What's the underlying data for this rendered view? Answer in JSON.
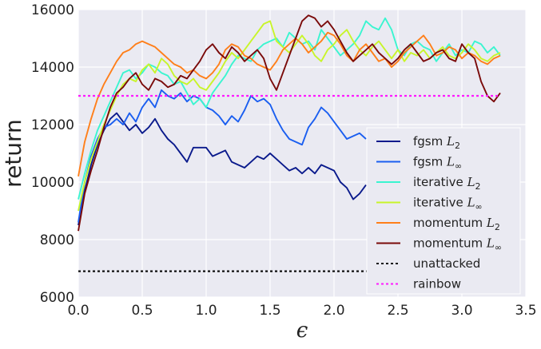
{
  "chart_data": {
    "type": "line",
    "title": "",
    "xlabel": "ϵ",
    "ylabel": "return",
    "xlim": [
      0.0,
      3.5
    ],
    "ylim": [
      6000,
      16000
    ],
    "xticks": [
      "0.0",
      "0.5",
      "1.0",
      "1.5",
      "2.0",
      "2.5",
      "3.0",
      "3.5"
    ],
    "yticks": [
      "6000",
      "8000",
      "10000",
      "12000",
      "14000",
      "16000"
    ],
    "grid": true,
    "legend_position": "lower-right",
    "series": [
      {
        "name": "fgsm L2",
        "legend_base": "fgsm ",
        "legend_sub": "2",
        "color": "#0a1a8c",
        "dash": "",
        "x": [
          0.0,
          0.05,
          0.1,
          0.15,
          0.2,
          0.25,
          0.3,
          0.35,
          0.4,
          0.45,
          0.5,
          0.55,
          0.6,
          0.65,
          0.7,
          0.75,
          0.8,
          0.85,
          0.9,
          0.95,
          1.0,
          1.05,
          1.1,
          1.15,
          1.2,
          1.25,
          1.3,
          1.35,
          1.4,
          1.45,
          1.5,
          1.55,
          1.6,
          1.65,
          1.7,
          1.75,
          1.8,
          1.85,
          1.9,
          1.95,
          2.0,
          2.05,
          2.1,
          2.15,
          2.2,
          2.25
        ],
        "y": [
          8500,
          9700,
          10600,
          11300,
          11800,
          12200,
          12400,
          12100,
          11800,
          12000,
          11700,
          11900,
          12200,
          11800,
          11500,
          11300,
          11000,
          10700,
          11200,
          11200,
          11200,
          10900,
          11000,
          11100,
          10700,
          10600,
          10500,
          10700,
          10900,
          10800,
          11000,
          10800,
          10600,
          10400,
          10500,
          10300,
          10500,
          10300,
          10600,
          10500,
          10400,
          10000,
          9800,
          9400,
          9600,
          9900
        ]
      },
      {
        "name": "fgsm L∞",
        "legend_base": "fgsm ",
        "legend_sub": "∞",
        "color": "#1a5ef0",
        "dash": "",
        "x": [
          0.0,
          0.05,
          0.1,
          0.15,
          0.2,
          0.25,
          0.3,
          0.35,
          0.4,
          0.45,
          0.5,
          0.55,
          0.6,
          0.65,
          0.7,
          0.75,
          0.8,
          0.85,
          0.9,
          0.95,
          1.0,
          1.05,
          1.1,
          1.15,
          1.2,
          1.25,
          1.3,
          1.35,
          1.4,
          1.45,
          1.5,
          1.55,
          1.6,
          1.65,
          1.7,
          1.75,
          1.8,
          1.85,
          1.9,
          1.95,
          2.0,
          2.05,
          2.1,
          2.15,
          2.2,
          2.25
        ],
        "y": [
          8600,
          10000,
          10900,
          11500,
          11900,
          12000,
          12200,
          12000,
          12400,
          12100,
          12600,
          12900,
          12600,
          13200,
          13000,
          12900,
          13100,
          12800,
          13000,
          12900,
          12600,
          12500,
          12300,
          12000,
          12300,
          12100,
          12500,
          13000,
          12800,
          12900,
          12700,
          12200,
          11800,
          11500,
          11400,
          11300,
          11900,
          12200,
          12600,
          12400,
          12100,
          11800,
          11500,
          11600,
          11700,
          11500
        ]
      },
      {
        "name": "iterative L2",
        "legend_base": "iterative ",
        "legend_sub": "2",
        "color": "#3af5d0",
        "dash": "",
        "x": [
          0.0,
          0.05,
          0.1,
          0.15,
          0.2,
          0.25,
          0.3,
          0.35,
          0.4,
          0.45,
          0.5,
          0.55,
          0.6,
          0.65,
          0.7,
          0.75,
          0.8,
          0.85,
          0.9,
          0.95,
          1.0,
          1.05,
          1.1,
          1.15,
          1.2,
          1.25,
          1.3,
          1.35,
          1.4,
          1.45,
          1.5,
          1.55,
          1.6,
          1.65,
          1.7,
          1.75,
          1.8,
          1.85,
          1.9,
          1.95,
          2.0,
          2.05,
          2.1,
          2.15,
          2.2,
          2.25,
          2.3,
          2.35,
          2.4,
          2.45,
          2.5,
          2.55,
          2.6,
          2.65,
          2.7,
          2.75,
          2.8,
          2.85,
          2.9,
          2.95,
          3.0,
          3.05,
          3.1,
          3.15,
          3.2,
          3.25,
          3.3
        ],
        "y": [
          9400,
          10300,
          11100,
          11800,
          12300,
          12800,
          13300,
          13800,
          13900,
          13600,
          13800,
          14100,
          14000,
          13800,
          13700,
          13400,
          13500,
          13100,
          12700,
          12900,
          12600,
          13100,
          13400,
          13700,
          14100,
          14400,
          14300,
          14200,
          14600,
          14800,
          14900,
          15000,
          14700,
          15200,
          15000,
          14800,
          14900,
          14600,
          15300,
          15000,
          14700,
          14400,
          14600,
          14800,
          15100,
          15600,
          15400,
          15300,
          15700,
          15300,
          14600,
          14400,
          14800,
          14900,
          14700,
          14600,
          14200,
          14500,
          14800,
          14400,
          14600,
          14500,
          14900,
          14800,
          14500,
          14700,
          14400
        ]
      },
      {
        "name": "iterative L∞",
        "legend_base": "iterative ",
        "legend_sub": "∞",
        "color": "#c8f52a",
        "dash": "",
        "x": [
          0.0,
          0.05,
          0.1,
          0.15,
          0.2,
          0.25,
          0.3,
          0.35,
          0.4,
          0.45,
          0.5,
          0.55,
          0.6,
          0.65,
          0.7,
          0.75,
          0.8,
          0.85,
          0.9,
          0.95,
          1.0,
          1.05,
          1.1,
          1.15,
          1.2,
          1.25,
          1.3,
          1.35,
          1.4,
          1.45,
          1.5,
          1.55,
          1.6,
          1.65,
          1.7,
          1.75,
          1.8,
          1.85,
          1.9,
          1.95,
          2.0,
          2.05,
          2.1,
          2.15,
          2.2,
          2.25,
          2.3,
          2.35,
          2.4,
          2.45,
          2.5,
          2.55,
          2.6,
          2.65,
          2.7,
          2.75,
          2.8,
          2.85,
          2.9,
          2.95,
          3.0,
          3.05,
          3.1,
          3.15,
          3.2,
          3.25,
          3.3
        ],
        "y": [
          9000,
          10000,
          10800,
          11400,
          12000,
          12500,
          13000,
          13400,
          13600,
          13500,
          13900,
          14100,
          13800,
          14300,
          14100,
          13700,
          13500,
          13400,
          13600,
          13300,
          13200,
          13500,
          13800,
          14200,
          14500,
          14300,
          14600,
          14900,
          15200,
          15500,
          15600,
          14900,
          14700,
          14500,
          14800,
          15100,
          14800,
          14400,
          14200,
          14600,
          14800,
          15100,
          15300,
          14900,
          14600,
          14400,
          14700,
          14900,
          14600,
          14300,
          14600,
          14200,
          14500,
          14400,
          14600,
          14300,
          14500,
          14700,
          14400,
          14300,
          14500,
          14800,
          14600,
          14300,
          14200,
          14400,
          14500
        ]
      },
      {
        "name": "momentum L2",
        "legend_base": "momentum ",
        "legend_sub": "2",
        "color": "#ff7f1a",
        "dash": "",
        "x": [
          0.0,
          0.05,
          0.1,
          0.15,
          0.2,
          0.25,
          0.3,
          0.35,
          0.4,
          0.45,
          0.5,
          0.55,
          0.6,
          0.65,
          0.7,
          0.75,
          0.8,
          0.85,
          0.9,
          0.95,
          1.0,
          1.05,
          1.1,
          1.15,
          1.2,
          1.25,
          1.3,
          1.35,
          1.4,
          1.45,
          1.5,
          1.55,
          1.6,
          1.65,
          1.7,
          1.75,
          1.8,
          1.85,
          1.9,
          1.95,
          2.0,
          2.05,
          2.1,
          2.15,
          2.2,
          2.25,
          2.3,
          2.35,
          2.4,
          2.45,
          2.5,
          2.55,
          2.6,
          2.65,
          2.7,
          2.75,
          2.8,
          2.85,
          2.9,
          2.95,
          3.0,
          3.05,
          3.1,
          3.15,
          3.2,
          3.25,
          3.3
        ],
        "y": [
          10200,
          11400,
          12200,
          12900,
          13400,
          13800,
          14200,
          14500,
          14600,
          14800,
          14900,
          14800,
          14700,
          14500,
          14300,
          14100,
          14000,
          13800,
          13900,
          13700,
          13600,
          13800,
          14100,
          14600,
          14800,
          14700,
          14400,
          14300,
          14100,
          14000,
          13900,
          14200,
          14600,
          14800,
          15000,
          14800,
          14500,
          14700,
          14900,
          15200,
          15100,
          14800,
          14400,
          14200,
          14600,
          14800,
          14500,
          14200,
          14300,
          14000,
          14200,
          14500,
          14700,
          14900,
          15100,
          14800,
          14400,
          14500,
          14700,
          14600,
          14300,
          14500,
          14400,
          14200,
          14100,
          14300,
          14400
        ]
      },
      {
        "name": "momentum L∞",
        "legend_base": "momentum ",
        "legend_sub": "∞",
        "color": "#7a0a0a",
        "dash": "",
        "x": [
          0.0,
          0.05,
          0.1,
          0.15,
          0.2,
          0.25,
          0.3,
          0.35,
          0.4,
          0.45,
          0.5,
          0.55,
          0.6,
          0.65,
          0.7,
          0.75,
          0.8,
          0.85,
          0.9,
          0.95,
          1.0,
          1.05,
          1.1,
          1.15,
          1.2,
          1.25,
          1.3,
          1.35,
          1.4,
          1.45,
          1.5,
          1.55,
          1.6,
          1.65,
          1.7,
          1.75,
          1.8,
          1.85,
          1.9,
          1.95,
          2.0,
          2.05,
          2.1,
          2.15,
          2.2,
          2.25,
          2.3,
          2.35,
          2.4,
          2.45,
          2.5,
          2.55,
          2.6,
          2.65,
          2.7,
          2.75,
          2.8,
          2.85,
          2.9,
          2.95,
          3.0,
          3.05,
          3.1,
          3.15,
          3.2,
          3.25,
          3.3
        ],
        "y": [
          8300,
          9600,
          10400,
          11100,
          11900,
          12600,
          13100,
          13300,
          13600,
          13800,
          13400,
          13200,
          13600,
          13500,
          13300,
          13400,
          13700,
          13600,
          13900,
          14200,
          14600,
          14800,
          14500,
          14300,
          14700,
          14500,
          14200,
          14400,
          14600,
          14300,
          13600,
          13200,
          13800,
          14400,
          15000,
          15600,
          15800,
          15700,
          15400,
          15600,
          15300,
          14900,
          14500,
          14200,
          14400,
          14600,
          14800,
          14500,
          14300,
          14100,
          14300,
          14600,
          14800,
          14500,
          14200,
          14300,
          14500,
          14600,
          14300,
          14200,
          14800,
          14500,
          14300,
          13500,
          13000,
          12800,
          13100
        ]
      },
      {
        "name": "unattacked",
        "legend_base": "unattacked",
        "legend_sub": "",
        "color": "#111111",
        "dash": "3,3",
        "x": [
          0.0,
          3.3
        ],
        "y": [
          6900,
          6900
        ]
      },
      {
        "name": "rainbow",
        "legend_base": "rainbow",
        "legend_sub": "",
        "color": "#ff1aff",
        "dash": "3,3",
        "x": [
          0.0,
          3.3
        ],
        "y": [
          13000,
          13000
        ]
      }
    ]
  }
}
